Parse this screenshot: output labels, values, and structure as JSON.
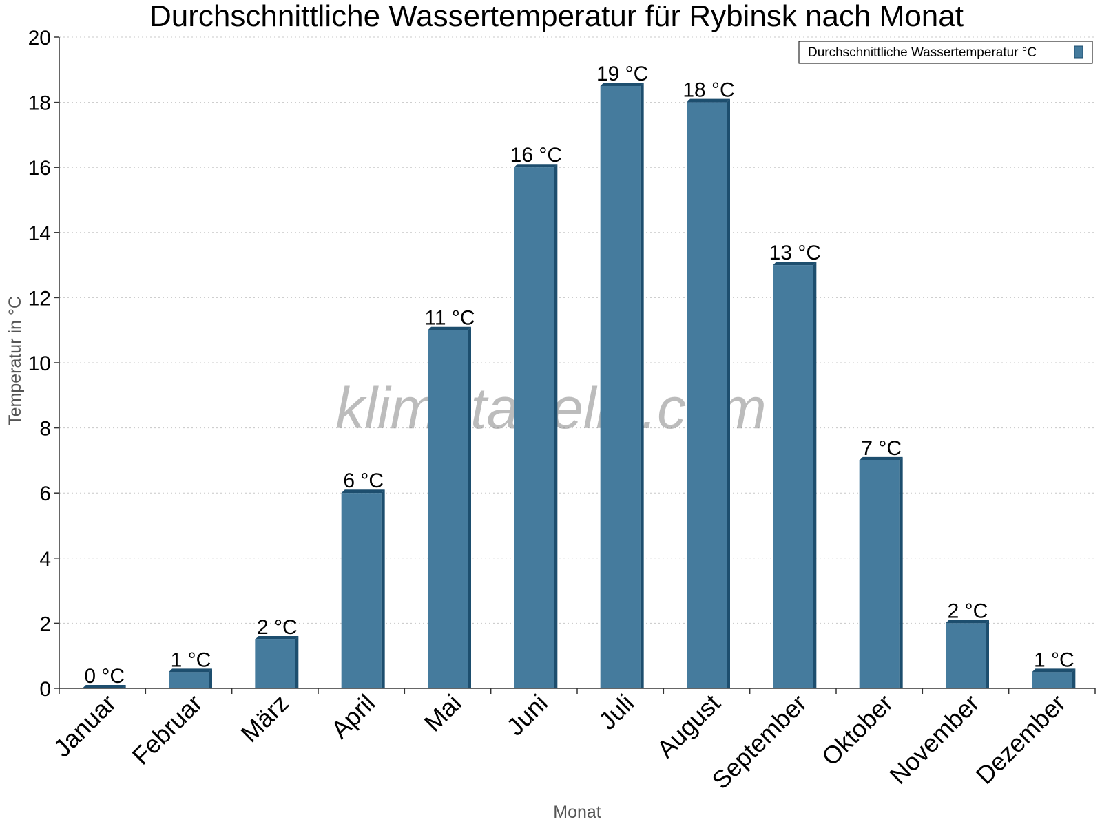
{
  "chart_data": {
    "type": "bar",
    "title": "Durchschnittliche Wassertemperatur für Rybinsk nach Monat",
    "xlabel": "Monat",
    "ylabel": "Temperatur in °C",
    "ylim": [
      0,
      20
    ],
    "yticks": [
      "0",
      "2",
      "4",
      "6",
      "8",
      "10",
      "12",
      "14",
      "16",
      "18",
      "20"
    ],
    "grid": true,
    "legend_position": "top-right",
    "categories": [
      "Januar",
      "Februar",
      "März",
      "April",
      "Mai",
      "Juni",
      "Juli",
      "August",
      "September",
      "Oktober",
      "November",
      "Dezember"
    ],
    "series": [
      {
        "name": "Durchschnittliche Wassertemperatur °C",
        "values": [
          0,
          0.5,
          1.5,
          6,
          11,
          16,
          18.5,
          18,
          13,
          7,
          2,
          0.5
        ],
        "labels": [
          "0 °C",
          "1 °C",
          "2 °C",
          "6 °C",
          "11 °C",
          "16 °C",
          "19 °C",
          "18 °C",
          "13 °C",
          "7 °C",
          "2 °C",
          "1 °C"
        ],
        "color": "#457b9d",
        "shade_color": "#1d4e6e"
      }
    ]
  },
  "watermark": "klimatabelle.com"
}
